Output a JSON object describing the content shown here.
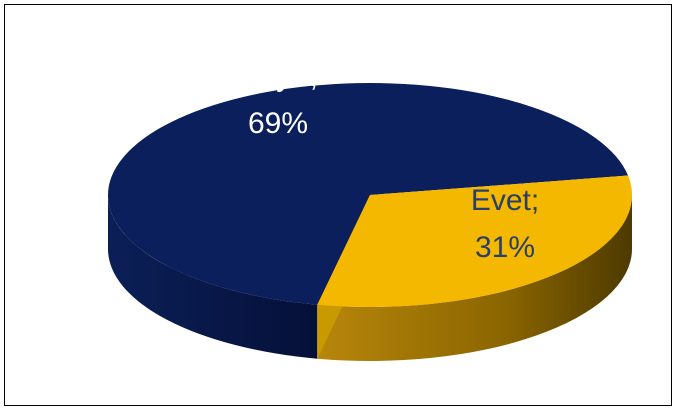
{
  "chart_data": {
    "type": "pie",
    "style": "3d-tilted",
    "slices": [
      {
        "label": "Hayır",
        "value": 69,
        "display": "Hayır;",
        "percent_text": "69%",
        "color": "#0a1f5c",
        "label_color": "#ffffff"
      },
      {
        "label": "Evet",
        "value": 31,
        "display": "Evet;",
        "percent_text": "31%",
        "color": "#f5b800",
        "label_color": "#2a3f6b"
      }
    ],
    "legend": "none",
    "colors": {
      "hayir_side": "#061240",
      "evet_side_dark": "#7a5c00",
      "evet_side_light": "#d9a300",
      "border": "#000000"
    }
  }
}
